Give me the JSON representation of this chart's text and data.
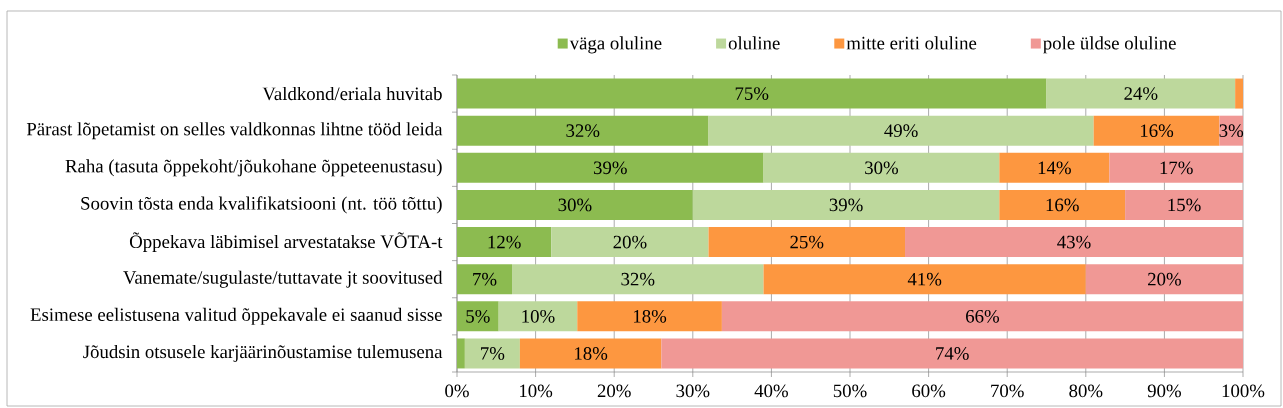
{
  "chart_data": {
    "type": "bar",
    "orientation": "horizontal",
    "stacked": true,
    "categories": [
      "Valdkond/eriala huvitab",
      "Pärast lõpetamist on selles valdkonnas lihtne tööd leida",
      "Raha (tasuta õppekoht/jõukohane õppeteenustasu)",
      "Soovin tõsta enda kvalifikatsiooni (nt. töö tõttu)",
      "Õppekava läbimisel arvestatakse VÕTA-t",
      "Vanemate/sugulaste/tuttavate jt soovitused",
      "Esimese eelistusena valitud õppekavale ei saanud sisse",
      "Jõudsin otsusele karjäärinõustamise tulemusena"
    ],
    "series": [
      {
        "name": "väga oluline",
        "color": "#8CBB50",
        "values": [
          75,
          32,
          39,
          30,
          12,
          7,
          5.3,
          1
        ],
        "value_labels": [
          "75%",
          "32%",
          "39%",
          "30%",
          "12%",
          "7%",
          "5%",
          null
        ]
      },
      {
        "name": "oluline",
        "color": "#BDD89C",
        "values": [
          24,
          49,
          30,
          39,
          20,
          32,
          10,
          7
        ],
        "value_labels": [
          "24%",
          "49%",
          "30%",
          "39%",
          "20%",
          "32%",
          "10%",
          "7%"
        ]
      },
      {
        "name": "mitte eriti oluline",
        "color": "#FD9740",
        "values": [
          1,
          16,
          14,
          16,
          25,
          41,
          18.4,
          18
        ],
        "value_labels": [
          null,
          "16%",
          "14%",
          "16%",
          "25%",
          "41%",
          "18%",
          "18%"
        ]
      },
      {
        "name": "pole üldse oluline",
        "color": "#F09895",
        "values": [
          null,
          3,
          17,
          15,
          43,
          20,
          66.3,
          74
        ],
        "value_labels": [
          null,
          "3%",
          "17%",
          "15%",
          "43%",
          "20%",
          "66%",
          "74%"
        ]
      }
    ],
    "xlim": [
      0,
      100
    ],
    "xticks": [
      {
        "value": 0,
        "label": "0%"
      },
      {
        "value": 10,
        "label": "10%"
      },
      {
        "value": 20,
        "label": "20%"
      },
      {
        "value": 30,
        "label": "30%"
      },
      {
        "value": 40,
        "label": "40%"
      },
      {
        "value": 50,
        "label": "50%"
      },
      {
        "value": 60,
        "label": "60%"
      },
      {
        "value": 70,
        "label": "70%"
      },
      {
        "value": 80,
        "label": "80%"
      },
      {
        "value": 90,
        "label": "90%"
      },
      {
        "value": 100,
        "label": "100%"
      }
    ],
    "grid": "x",
    "legend": "top"
  }
}
